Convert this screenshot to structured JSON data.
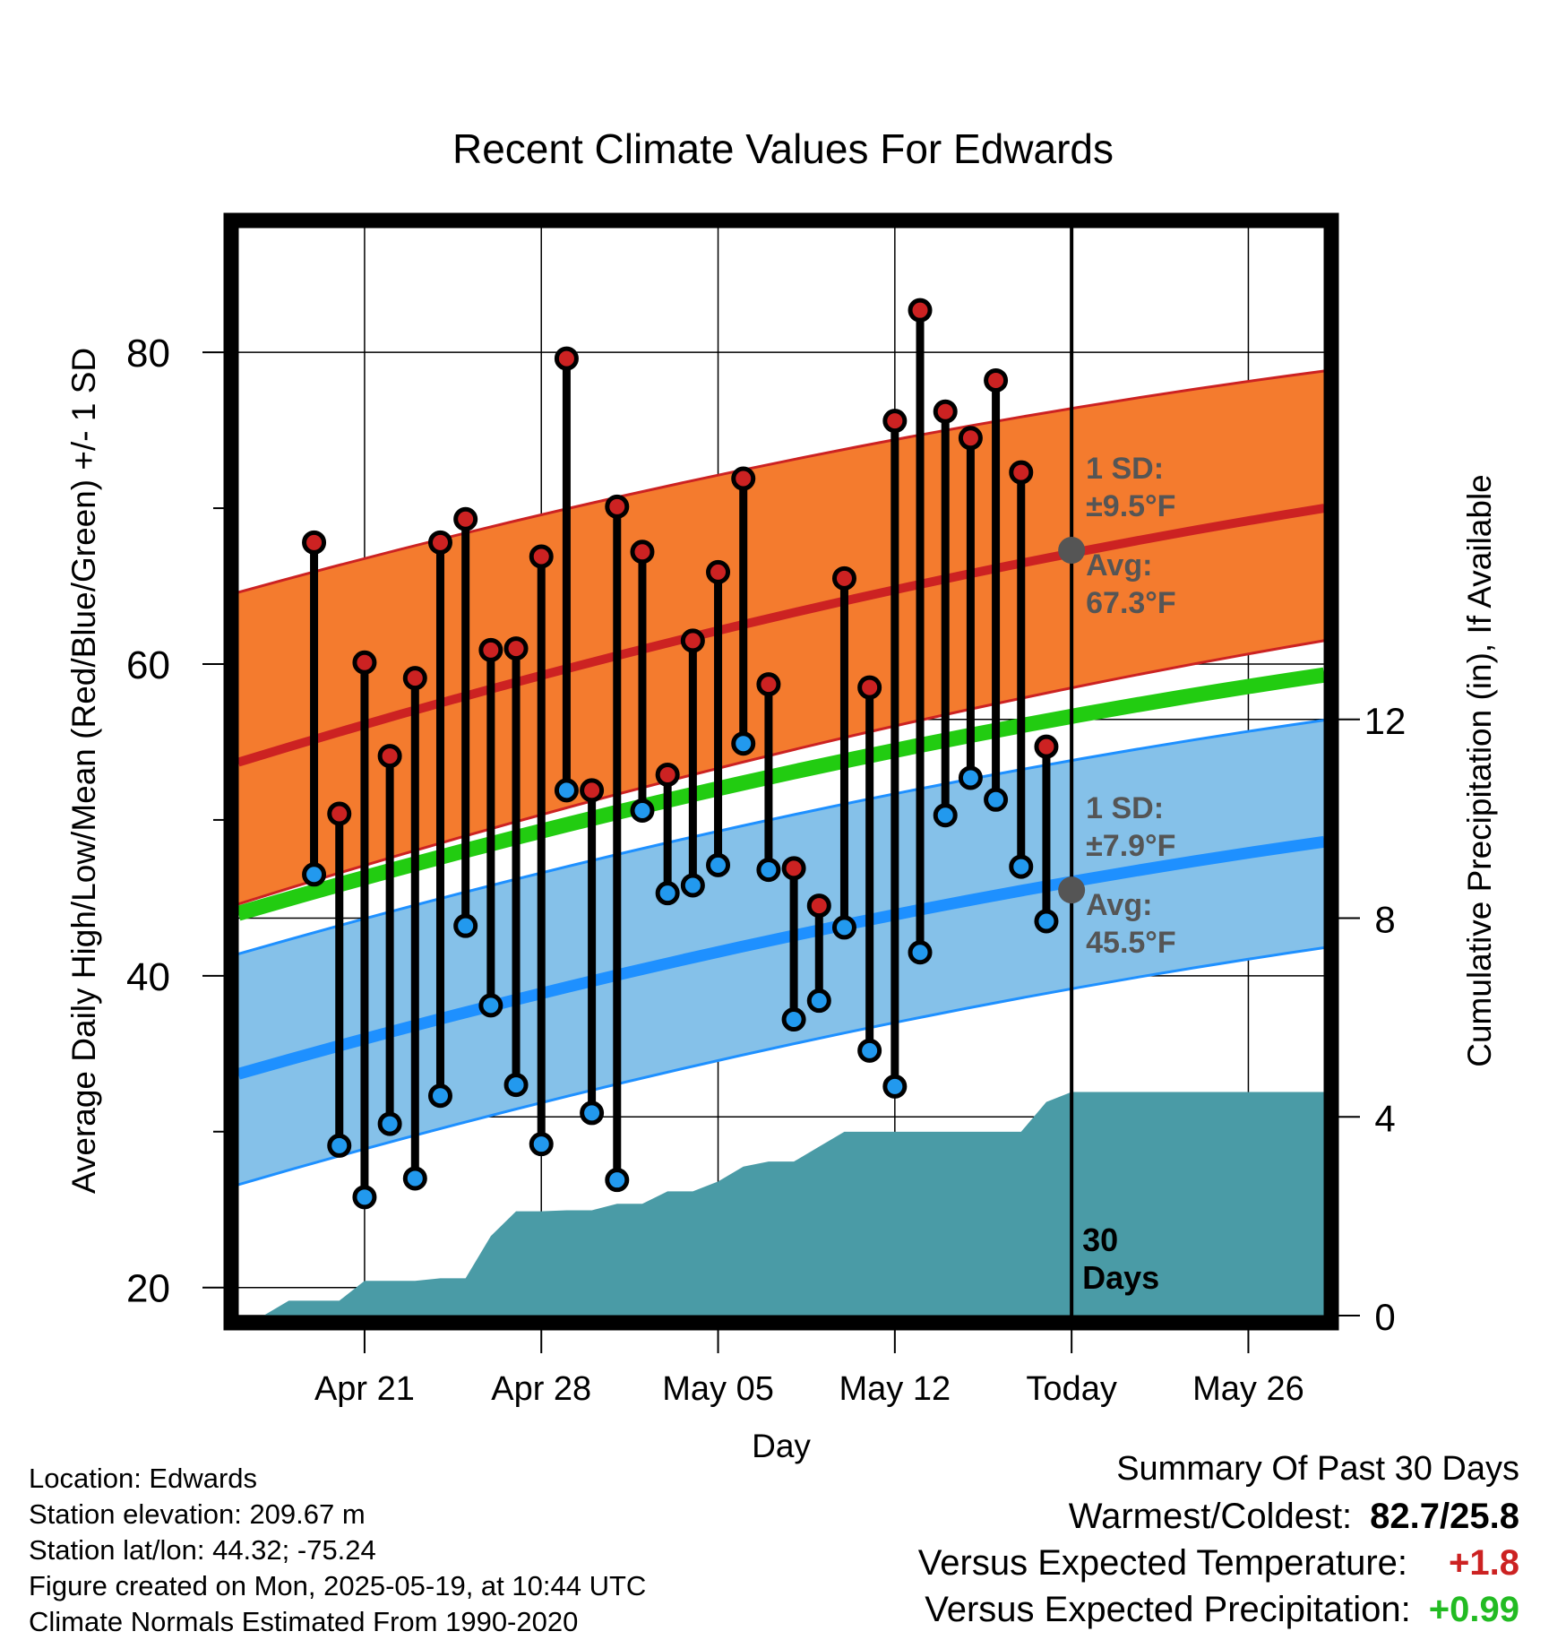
{
  "title": "Recent Climate Values For Edwards",
  "chart_data": {
    "type": "line",
    "title": "Recent Climate Values For Edwards",
    "xlabel": "Day",
    "ylabel": "Average Daily High/Low/Mean (Red/Blue/Green) +/- 1 SD",
    "y2label": "Cumulative Precipitation (in), If Available",
    "ylim": [
      18.2,
      88
    ],
    "y2lim": [
      0,
      21.9
    ],
    "xlim": [
      "2025-04-16",
      "2025-05-29"
    ],
    "yticks": [
      "20",
      "40",
      "60",
      "80"
    ],
    "y2ticks": [
      "0",
      "4",
      "8",
      "12"
    ],
    "xticks": [
      {
        "date": "2025-04-21",
        "label": "Apr 21"
      },
      {
        "date": "2025-04-28",
        "label": "Apr 28"
      },
      {
        "date": "2025-05-05",
        "label": "May 05"
      },
      {
        "date": "2025-05-12",
        "label": "May 12"
      },
      {
        "date": "2025-05-19",
        "label": "Today"
      },
      {
        "date": "2025-05-26",
        "label": "May 26"
      }
    ],
    "grid": true,
    "today": "2025-05-19",
    "window_label": [
      "30",
      "Days"
    ],
    "normals": {
      "dates": [
        "2025-04-16",
        "2025-05-29"
      ],
      "high_mean": [
        53.7,
        70.0
      ],
      "high_upper": [
        64.6,
        78.8
      ],
      "high_lower": [
        44.6,
        61.5
      ],
      "mean": [
        44.0,
        59.3
      ],
      "low_mean": [
        33.7,
        48.6
      ],
      "low_upper": [
        41.4,
        56.4
      ],
      "low_lower": [
        26.6,
        41.8
      ]
    },
    "annotations": {
      "high_sd": [
        "1 SD:",
        "±9.5°F"
      ],
      "high_avg": [
        "Avg:",
        "67.3°F"
      ],
      "low_sd": [
        "1 SD:",
        "±7.9°F"
      ],
      "low_avg": [
        "Avg:",
        "45.5°F"
      ]
    },
    "today_high_avg": 67.3,
    "today_low_avg": 45.5,
    "series": [
      {
        "name": "High",
        "color": "#cc2222",
        "dates": [
          "2025-04-19",
          "2025-04-20",
          "2025-04-21",
          "2025-04-22",
          "2025-04-23",
          "2025-04-24",
          "2025-04-25",
          "2025-04-26",
          "2025-04-27",
          "2025-04-28",
          "2025-04-29",
          "2025-04-30",
          "2025-05-01",
          "2025-05-02",
          "2025-05-03",
          "2025-05-04",
          "2025-05-05",
          "2025-05-06",
          "2025-05-07",
          "2025-05-08",
          "2025-05-09",
          "2025-05-10",
          "2025-05-11",
          "2025-05-12",
          "2025-05-13",
          "2025-05-14",
          "2025-05-15",
          "2025-05-16",
          "2025-05-17",
          "2025-05-18"
        ],
        "values": [
          67.8,
          50.4,
          60.1,
          54.1,
          59.1,
          67.8,
          69.3,
          60.9,
          61.0,
          66.9,
          79.6,
          51.9,
          70.1,
          67.2,
          52.9,
          61.5,
          65.9,
          71.9,
          58.7,
          46.9,
          44.5,
          65.5,
          58.5,
          75.6,
          82.7,
          76.2,
          74.5,
          78.2,
          72.3,
          54.7
        ]
      },
      {
        "name": "Low",
        "color": "#2299ee",
        "dates": [
          "2025-04-19",
          "2025-04-20",
          "2025-04-21",
          "2025-04-22",
          "2025-04-23",
          "2025-04-24",
          "2025-04-25",
          "2025-04-26",
          "2025-04-27",
          "2025-04-28",
          "2025-04-29",
          "2025-04-30",
          "2025-05-01",
          "2025-05-02",
          "2025-05-03",
          "2025-05-04",
          "2025-05-05",
          "2025-05-06",
          "2025-05-07",
          "2025-05-08",
          "2025-05-09",
          "2025-05-10",
          "2025-05-11",
          "2025-05-12",
          "2025-05-13",
          "2025-05-14",
          "2025-05-15",
          "2025-05-16",
          "2025-05-17",
          "2025-05-18"
        ],
        "values": [
          46.5,
          29.1,
          25.8,
          30.5,
          27.0,
          32.3,
          43.2,
          38.1,
          33.0,
          29.2,
          51.9,
          31.2,
          26.9,
          50.6,
          45.3,
          45.8,
          47.1,
          54.9,
          46.8,
          37.2,
          38.4,
          43.1,
          35.2,
          32.9,
          41.5,
          50.3,
          52.7,
          51.3,
          47.0,
          43.5
        ]
      },
      {
        "name": "Precipitation",
        "color": "#4a9ba6",
        "dates": [
          "2025-04-17",
          "2025-04-18",
          "2025-04-19",
          "2025-04-20",
          "2025-04-21",
          "2025-04-22",
          "2025-04-23",
          "2025-04-24",
          "2025-04-25",
          "2025-04-26",
          "2025-04-27",
          "2025-04-28",
          "2025-04-29",
          "2025-04-30",
          "2025-05-01",
          "2025-05-02",
          "2025-05-03",
          "2025-05-04",
          "2025-05-05",
          "2025-05-06",
          "2025-05-07",
          "2025-05-08",
          "2025-05-09",
          "2025-05-10",
          "2025-05-11",
          "2025-05-12",
          "2025-05-13",
          "2025-05-14",
          "2025-05-15",
          "2025-05-16",
          "2025-05-17",
          "2025-05-18",
          "2025-05-19",
          "2025-05-29"
        ],
        "values": [
          0.0,
          0.3,
          0.3,
          0.3,
          0.7,
          0.7,
          0.7,
          0.75,
          0.75,
          1.6,
          2.1,
          2.1,
          2.12,
          2.12,
          2.25,
          2.25,
          2.5,
          2.5,
          2.7,
          3.0,
          3.1,
          3.1,
          3.4,
          3.7,
          3.7,
          3.7,
          3.7,
          3.7,
          3.7,
          3.7,
          3.7,
          4.3,
          4.5,
          4.5
        ]
      }
    ]
  },
  "footer": {
    "location": "Location: Edwards",
    "elevation": "Station elevation: 209.67 m",
    "latlon": "Station lat/lon: 44.32; -75.24",
    "created": "Figure created on Mon, 2025-05-19, at 10:44 UTC",
    "normals": "Climate Normals Estimated From 1990-2020"
  },
  "summary": {
    "title": "Summary Of Past 30 Days",
    "warmest_label": "Warmest/Coldest:",
    "warmest_value": "82.7/25.8",
    "temp_label": "Versus Expected Temperature:",
    "temp_value": "+1.8",
    "temp_color": "#cc2222",
    "precip_label": "Versus Expected Precipitation:",
    "precip_value": "+0.99",
    "precip_color": "#22bb22"
  }
}
